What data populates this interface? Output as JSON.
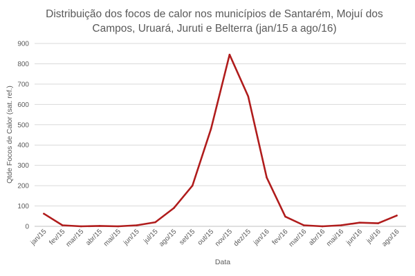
{
  "chart_data": {
    "type": "line",
    "title_lines": [
      "Distribuição dos focos de calor nos municípios de Santarém, Mojuí dos",
      "Campos, Uruará, Juruti e Belterra (jan/15 a ago/16)"
    ],
    "xlabel": "Data",
    "ylabel": "Qtde Focos de Calor (sat. ref.)",
    "ylim": [
      0,
      900
    ],
    "yticks": [
      "0",
      "100",
      "200",
      "300",
      "400",
      "500",
      "600",
      "700",
      "800",
      "900"
    ],
    "grid": true,
    "legend": "none",
    "categories": [
      "jan/15",
      "fev/15",
      "mar/15",
      "abr/15",
      "mai/15",
      "jun/15",
      "jul/15",
      "ago/15",
      "set/15",
      "out/15",
      "nov/15",
      "dez/15",
      "jan/16",
      "fev/16",
      "mar/16",
      "abr/16",
      "mai/16",
      "jun/16",
      "jul/16",
      "ago/16"
    ],
    "series": [
      {
        "values": [
          62,
          5,
          0,
          2,
          0,
          5,
          20,
          90,
          200,
          480,
          845,
          640,
          240,
          48,
          5,
          0,
          5,
          18,
          15,
          53
        ],
        "color": "#b01c1c"
      }
    ]
  }
}
